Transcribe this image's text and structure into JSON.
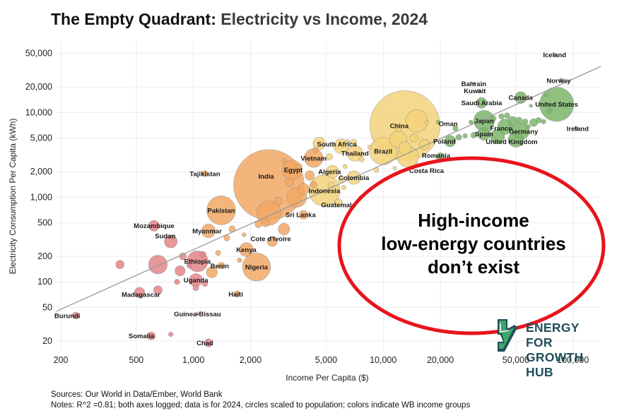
{
  "title_part1": "The Empty Quadrant:",
  "title_part2": "Electricity vs Income, 2024",
  "callout_lines": [
    "High-income",
    "low-energy countries",
    "don’t exist"
  ],
  "logo": {
    "line1": "ENERGY FOR",
    "line2": "GROWTH HUB"
  },
  "footer": {
    "sources": "Sources: Our World in Data/Ember, World Bank",
    "notes": "Notes: R^2 =0.81; both axes logged; data is for 2024, circles scaled to population; colors indicate WB income groups"
  },
  "colors": {
    "low": "#e4858a",
    "lower_middle": "#f2a865",
    "upper_middle": "#f3d27a",
    "high": "#7db56a",
    "trend": "#9a9a9a",
    "callout": "#e8141c"
  },
  "chart_data": {
    "type": "scatter",
    "xlabel": "Income Per Capita ($)",
    "ylabel": "Electricity Consumption Per Capita (kWh)",
    "x_scale": "log",
    "y_scale": "log",
    "xlim": [
      190,
      140000
    ],
    "ylim": [
      15,
      70000
    ],
    "x_ticks": [
      200,
      500,
      1000,
      2000,
      5000,
      10000,
      20000,
      50000,
      100000
    ],
    "x_tick_labels": [
      "200",
      "500",
      "1,000",
      "2,000",
      "5,000",
      "10,000",
      "20,000",
      "50,000",
      "100,000"
    ],
    "y_ticks": [
      20,
      50,
      100,
      200,
      500,
      1000,
      2000,
      5000,
      10000,
      20000,
      50000
    ],
    "y_tick_labels": [
      "20",
      "50",
      "100",
      "200",
      "500",
      "1,000",
      "2,000",
      "5,000",
      "10,000",
      "20,000",
      "50,000"
    ],
    "grid": true,
    "trendline": {
      "x": [
        190,
        140000
      ],
      "y": [
        45,
        35000
      ]
    },
    "points": [
      {
        "label": "Burundi",
        "x": 240,
        "y": 40,
        "group": "low",
        "pop": 14,
        "lab_dx": -12,
        "lab_dy": 0
      },
      {
        "label": "Somalia",
        "x": 600,
        "y": 23,
        "group": "low",
        "pop": 18,
        "lab_dx": -14,
        "lab_dy": 0
      },
      {
        "label": "Chad",
        "x": 1200,
        "y": 19,
        "group": "low",
        "pop": 19,
        "lab_dx": -5,
        "lab_dy": 0
      },
      {
        "label": "Guinea-Bissau",
        "x": 1050,
        "y": 42,
        "group": "low",
        "pop": 2,
        "lab_dx": 0,
        "lab_dy": 0
      },
      {
        "label": "Madagascar",
        "x": 520,
        "y": 75,
        "group": "low",
        "pop": 30,
        "lab_dx": 2,
        "lab_dy": 3
      },
      {
        "label": "Uganda",
        "x": 1030,
        "y": 105,
        "group": "low",
        "pop": 48,
        "lab_dx": 0,
        "lab_dy": 0
      },
      {
        "label": "Ethiopia",
        "x": 1050,
        "y": 175,
        "group": "low",
        "pop": 126,
        "lab_dx": 0,
        "lab_dy": 0
      },
      {
        "label": "Sudan",
        "x": 760,
        "y": 300,
        "group": "low",
        "pop": 48,
        "lab_dx": -8,
        "lab_dy": -8
      },
      {
        "label": "Mozambique",
        "x": 620,
        "y": 460,
        "group": "low",
        "pop": 33,
        "lab_dx": 0,
        "lab_dy": 0
      },
      {
        "label": "Haiti",
        "x": 1700,
        "y": 72,
        "group": "lower_middle",
        "pop": 11,
        "lab_dx": -2,
        "lab_dy": 0
      },
      {
        "label": "Nigeria",
        "x": 2150,
        "y": 150,
        "group": "lower_middle",
        "pop": 225,
        "lab_dx": 0,
        "lab_dy": 0
      },
      {
        "label": "Benin",
        "x": 1400,
        "y": 155,
        "group": "lower_middle",
        "pop": 13,
        "lab_dx": -2,
        "lab_dy": 0
      },
      {
        "label": "Kenya",
        "x": 1900,
        "y": 240,
        "group": "lower_middle",
        "pop": 55,
        "lab_dx": 0,
        "lab_dy": 0
      },
      {
        "label": "Cote d'Ivoire",
        "x": 2600,
        "y": 300,
        "group": "lower_middle",
        "pop": 29,
        "lab_dx": -2,
        "lab_dy": -4
      },
      {
        "label": "Myanmar",
        "x": 1200,
        "y": 400,
        "group": "lower_middle",
        "pop": 54,
        "lab_dx": -2,
        "lab_dy": 0
      },
      {
        "label": "Pakistan",
        "x": 1400,
        "y": 700,
        "group": "lower_middle",
        "pop": 240,
        "lab_dx": 0,
        "lab_dy": 0
      },
      {
        "label": "Sri Lanka",
        "x": 3800,
        "y": 620,
        "group": "lower_middle",
        "pop": 22,
        "lab_dx": -4,
        "lab_dy": 0
      },
      {
        "label": "India",
        "x": 2500,
        "y": 1400,
        "group": "lower_middle",
        "pop": 1430,
        "lab_dx": -4,
        "lab_dy": -12
      },
      {
        "label": "Tajikistan",
        "x": 1150,
        "y": 1900,
        "group": "lower_middle",
        "pop": 10,
        "lab_dx": 0,
        "lab_dy": 0
      },
      {
        "label": "Vietnam",
        "x": 4300,
        "y": 2900,
        "group": "lower_middle",
        "pop": 100,
        "lab_dx": 0,
        "lab_dy": 0
      },
      {
        "label": "Egypt",
        "x": 3300,
        "y": 2100,
        "group": "lower_middle",
        "pop": 112,
        "lab_dx": 2,
        "lab_dy": 0
      },
      {
        "label": "Guatemala",
        "x": 5800,
        "y": 860,
        "group": "upper_middle",
        "pop": 18,
        "lab_dx": 0,
        "lab_dy": 3
      },
      {
        "label": "Indonesia",
        "x": 4900,
        "y": 1200,
        "group": "upper_middle",
        "pop": 280,
        "lab_dx": 0,
        "lab_dy": 0
      },
      {
        "label": "Algeria",
        "x": 5400,
        "y": 2000,
        "group": "upper_middle",
        "pop": 46,
        "lab_dx": -4,
        "lab_dy": 0
      },
      {
        "label": "Colombia",
        "x": 7000,
        "y": 1700,
        "group": "upper_middle",
        "pop": 52,
        "lab_dx": 0,
        "lab_dy": 0
      },
      {
        "label": "South Africa",
        "x": 6000,
        "y": 4000,
        "group": "upper_middle",
        "pop": 62,
        "lab_dx": -6,
        "lab_dy": -3
      },
      {
        "label": "Thailand",
        "x": 7100,
        "y": 3300,
        "group": "upper_middle",
        "pop": 72,
        "lab_dx": 0,
        "lab_dy": 0
      },
      {
        "label": "Brazil",
        "x": 10000,
        "y": 3500,
        "group": "upper_middle",
        "pop": 216,
        "lab_dx": 0,
        "lab_dy": 0
      },
      {
        "label": "China",
        "x": 13000,
        "y": 7000,
        "group": "upper_middle",
        "pop": 1410,
        "lab_dx": -8,
        "lab_dy": 0
      },
      {
        "label": "Costa Rica",
        "x": 15000,
        "y": 2400,
        "group": "upper_middle",
        "pop": 5,
        "lab_dx": 14,
        "lab_dy": 8
      },
      {
        "label": "Romania",
        "x": 20000,
        "y": 3000,
        "group": "high",
        "pop": 19,
        "lab_dx": -6,
        "lab_dy": -2
      },
      {
        "label": "Poland",
        "x": 22500,
        "y": 4600,
        "group": "high",
        "pop": 37,
        "lab_dx": -8,
        "lab_dy": 0
      },
      {
        "label": "Oman",
        "x": 19500,
        "y": 7700,
        "group": "high",
        "pop": 5,
        "lab_dx": 14,
        "lab_dy": 2
      },
      {
        "label": "Spain",
        "x": 34000,
        "y": 5600,
        "group": "high",
        "pop": 48,
        "lab_dx": 0,
        "lab_dy": 0
      },
      {
        "label": "Japan",
        "x": 34000,
        "y": 8000,
        "group": "high",
        "pop": 124,
        "lab_dx": 0,
        "lab_dy": 0
      },
      {
        "label": "France",
        "x": 44000,
        "y": 6800,
        "group": "high",
        "pop": 68,
        "lab_dx": -6,
        "lab_dy": 2
      },
      {
        "label": "United Kingdom",
        "x": 50000,
        "y": 4800,
        "group": "high",
        "pop": 68,
        "lab_dx": -6,
        "lab_dy": 3
      },
      {
        "label": "Germany",
        "x": 53000,
        "y": 6000,
        "group": "high",
        "pop": 84,
        "lab_dx": 4,
        "lab_dy": 0
      },
      {
        "label": "Saudi Arabia",
        "x": 33000,
        "y": 13000,
        "group": "high",
        "pop": 33,
        "lab_dx": 0,
        "lab_dy": 0
      },
      {
        "label": "Kuwait",
        "x": 32000,
        "y": 18000,
        "group": "high",
        "pop": 4,
        "lab_dx": -6,
        "lab_dy": 0
      },
      {
        "label": "Bahrain",
        "x": 30000,
        "y": 22000,
        "group": "high",
        "pop": 1.5,
        "lab_dx": 0,
        "lab_dy": 0
      },
      {
        "label": "Canada",
        "x": 53000,
        "y": 15000,
        "group": "high",
        "pop": 40,
        "lab_dx": 0,
        "lab_dy": 0
      },
      {
        "label": "United States",
        "x": 82000,
        "y": 12500,
        "group": "high",
        "pop": 335,
        "lab_dx": 0,
        "lab_dy": 0
      },
      {
        "label": "Norway",
        "x": 87000,
        "y": 24000,
        "group": "high",
        "pop": 5.5,
        "lab_dx": -4,
        "lab_dy": 0
      },
      {
        "label": "Iceland",
        "x": 80000,
        "y": 48000,
        "group": "high",
        "pop": 0.4,
        "lab_dx": 0,
        "lab_dy": 0
      },
      {
        "label": "Ireland",
        "x": 104000,
        "y": 6500,
        "group": "high",
        "pop": 5,
        "lab_dx": 2,
        "lab_dy": 0
      },
      {
        "label": "",
        "x": 410,
        "y": 160,
        "group": "low",
        "pop": 20
      },
      {
        "label": "",
        "x": 650,
        "y": 160,
        "group": "low",
        "pop": 100
      },
      {
        "label": "",
        "x": 850,
        "y": 135,
        "group": "low",
        "pop": 30
      },
      {
        "label": "",
        "x": 650,
        "y": 80,
        "group": "low",
        "pop": 22
      },
      {
        "label": "",
        "x": 880,
        "y": 200,
        "group": "low",
        "pop": 14
      },
      {
        "label": "",
        "x": 820,
        "y": 100,
        "group": "low",
        "pop": 8
      },
      {
        "label": "",
        "x": 950,
        "y": 155,
        "group": "low",
        "pop": 6
      },
      {
        "label": "",
        "x": 1150,
        "y": 95,
        "group": "low",
        "pop": 9
      },
      {
        "label": "",
        "x": 1030,
        "y": 85,
        "group": "low",
        "pop": 10
      },
      {
        "label": "",
        "x": 1120,
        "y": 210,
        "group": "low",
        "pop": 12
      },
      {
        "label": "",
        "x": 760,
        "y": 24,
        "group": "low",
        "pop": 6
      },
      {
        "label": "",
        "x": 1250,
        "y": 130,
        "group": "lower_middle",
        "pop": 35
      },
      {
        "label": "",
        "x": 1350,
        "y": 220,
        "group": "lower_middle",
        "pop": 8
      },
      {
        "label": "",
        "x": 1500,
        "y": 330,
        "group": "lower_middle",
        "pop": 10
      },
      {
        "label": "",
        "x": 1750,
        "y": 180,
        "group": "lower_middle",
        "pop": 6
      },
      {
        "label": "",
        "x": 1600,
        "y": 420,
        "group": "lower_middle",
        "pop": 12
      },
      {
        "label": "",
        "x": 1850,
        "y": 360,
        "group": "lower_middle",
        "pop": 5
      },
      {
        "label": "",
        "x": 2500,
        "y": 650,
        "group": "lower_middle",
        "pop": 170
      },
      {
        "label": "",
        "x": 2400,
        "y": 500,
        "group": "lower_middle",
        "pop": 20
      },
      {
        "label": "",
        "x": 2200,
        "y": 480,
        "group": "lower_middle",
        "pop": 14
      },
      {
        "label": "",
        "x": 3000,
        "y": 420,
        "group": "lower_middle",
        "pop": 38
      },
      {
        "label": "",
        "x": 2800,
        "y": 900,
        "group": "lower_middle",
        "pop": 17
      },
      {
        "label": "",
        "x": 3200,
        "y": 1500,
        "group": "lower_middle",
        "pop": 22
      },
      {
        "label": "",
        "x": 3500,
        "y": 1000,
        "group": "lower_middle",
        "pop": 115
      },
      {
        "label": "",
        "x": 3800,
        "y": 1250,
        "group": "lower_middle",
        "pop": 37
      },
      {
        "label": "",
        "x": 4100,
        "y": 1800,
        "group": "lower_middle",
        "pop": 26
      },
      {
        "label": "",
        "x": 3600,
        "y": 2300,
        "group": "lower_middle",
        "pop": 10
      },
      {
        "label": "",
        "x": 4300,
        "y": 1400,
        "group": "lower_middle",
        "pop": 14
      },
      {
        "label": "",
        "x": 3000,
        "y": 2700,
        "group": "lower_middle",
        "pop": 7
      },
      {
        "label": "",
        "x": 4400,
        "y": 3600,
        "group": "lower_middle",
        "pop": 8
      },
      {
        "label": "",
        "x": 4600,
        "y": 4300,
        "group": "upper_middle",
        "pop": 45
      },
      {
        "label": "",
        "x": 5200,
        "y": 3000,
        "group": "upper_middle",
        "pop": 12
      },
      {
        "label": "",
        "x": 5300,
        "y": 1400,
        "group": "upper_middle",
        "pop": 9
      },
      {
        "label": "",
        "x": 6200,
        "y": 1300,
        "group": "upper_middle",
        "pop": 6
      },
      {
        "label": "",
        "x": 6300,
        "y": 2300,
        "group": "upper_middle",
        "pop": 5
      },
      {
        "label": "",
        "x": 6000,
        "y": 1600,
        "group": "upper_middle",
        "pop": 11
      },
      {
        "label": "",
        "x": 6500,
        "y": 4500,
        "group": "upper_middle",
        "pop": 6
      },
      {
        "label": "",
        "x": 7600,
        "y": 1000,
        "group": "upper_middle",
        "pop": 4
      },
      {
        "label": "",
        "x": 7700,
        "y": 2800,
        "group": "upper_middle",
        "pop": 8
      },
      {
        "label": "",
        "x": 7000,
        "y": 4500,
        "group": "upper_middle",
        "pop": 9
      },
      {
        "label": "",
        "x": 8500,
        "y": 3900,
        "group": "upper_middle",
        "pop": 5
      },
      {
        "label": "",
        "x": 9200,
        "y": 2100,
        "group": "upper_middle",
        "pop": 7
      },
      {
        "label": "",
        "x": 11500,
        "y": 2200,
        "group": "upper_middle",
        "pop": 4
      },
      {
        "label": "",
        "x": 12000,
        "y": 4800,
        "group": "upper_middle",
        "pop": 84
      },
      {
        "label": "",
        "x": 13500,
        "y": 3000,
        "group": "upper_middle",
        "pop": 128
      },
      {
        "label": "",
        "x": 13000,
        "y": 3800,
        "group": "upper_middle",
        "pop": 45
      },
      {
        "label": "",
        "x": 15000,
        "y": 8000,
        "group": "upper_middle",
        "pop": 144
      },
      {
        "label": "",
        "x": 14500,
        "y": 5000,
        "group": "upper_middle",
        "pop": 19
      },
      {
        "label": "",
        "x": 16500,
        "y": 4200,
        "group": "upper_middle",
        "pop": 30
      },
      {
        "label": "",
        "x": 12000,
        "y": 6500,
        "group": "upper_middle",
        "pop": 14
      },
      {
        "label": "",
        "x": 17000,
        "y": 7600,
        "group": "upper_middle",
        "pop": 5
      },
      {
        "label": "",
        "x": 24000,
        "y": 6500,
        "group": "high",
        "pop": 8
      },
      {
        "label": "",
        "x": 25000,
        "y": 5100,
        "group": "high",
        "pop": 10
      },
      {
        "label": "",
        "x": 27000,
        "y": 5300,
        "group": "high",
        "pop": 6
      },
      {
        "label": "",
        "x": 29000,
        "y": 7700,
        "group": "high",
        "pop": 5
      },
      {
        "label": "",
        "x": 30000,
        "y": 5400,
        "group": "high",
        "pop": 10
      },
      {
        "label": "",
        "x": 40000,
        "y": 5200,
        "group": "high",
        "pop": 59
      },
      {
        "label": "",
        "x": 38000,
        "y": 8500,
        "group": "high",
        "pop": 10
      },
      {
        "label": "",
        "x": 42000,
        "y": 9000,
        "group": "high",
        "pop": 9
      },
      {
        "label": "",
        "x": 45000,
        "y": 9200,
        "group": "high",
        "pop": 8
      },
      {
        "label": "",
        "x": 48000,
        "y": 7900,
        "group": "high",
        "pop": 26
      },
      {
        "label": "",
        "x": 52000,
        "y": 8100,
        "group": "high",
        "pop": 11
      },
      {
        "label": "",
        "x": 56000,
        "y": 7800,
        "group": "high",
        "pop": 9
      },
      {
        "label": "",
        "x": 58000,
        "y": 6800,
        "group": "high",
        "pop": 6
      },
      {
        "label": "",
        "x": 62000,
        "y": 7600,
        "group": "high",
        "pop": 17
      },
      {
        "label": "",
        "x": 66000,
        "y": 8100,
        "group": "high",
        "pop": 9
      },
      {
        "label": "",
        "x": 70000,
        "y": 7800,
        "group": "high",
        "pop": 6
      },
      {
        "label": "",
        "x": 75000,
        "y": 10500,
        "group": "high",
        "pop": 10
      },
      {
        "label": "",
        "x": 72000,
        "y": 16000,
        "group": "high",
        "pop": 3
      },
      {
        "label": "",
        "x": 60000,
        "y": 12000,
        "group": "high",
        "pop": 3
      }
    ]
  }
}
